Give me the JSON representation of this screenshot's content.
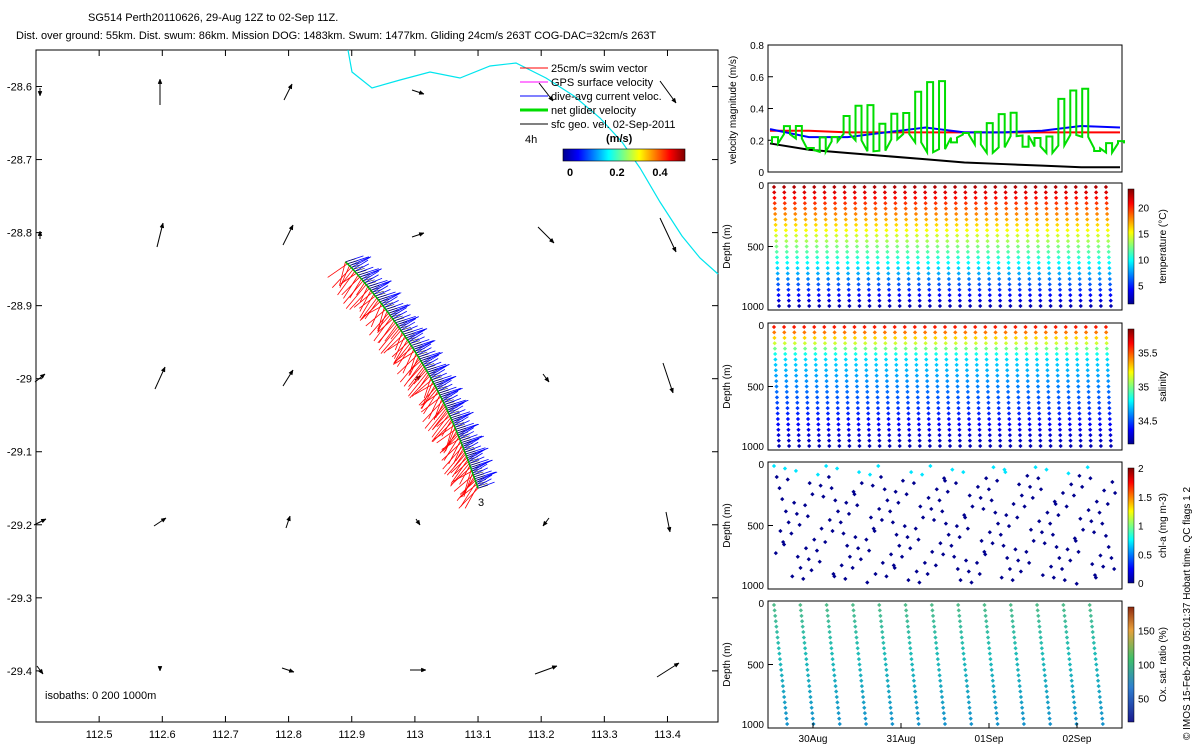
{
  "header": {
    "title": "SG514 Perth20110626, 29-Aug 12Z to 02-Sep 11Z.",
    "stats": "Dist. over ground: 55km. Dist. swum: 86km. Mission DOG: 1483km. Swum: 1477km. Gliding 24cm/s 263T COG-DAC=32cm/s 263T"
  },
  "credit": "© IMOS 15-Feb-2019 05:01:37 Hobart time. QC flags 1  2",
  "chart_data": [
    {
      "id": "map",
      "type": "scatter",
      "xlim": [
        112.4,
        113.48
      ],
      "ylim": [
        -29.47,
        -28.55
      ],
      "xticks": [
        "112.5",
        "112.6",
        "112.7",
        "112.8",
        "112.9",
        "113",
        "113.1",
        "113.2",
        "113.3",
        "113.4"
      ],
      "yticks": [
        "-28.6",
        "-28.7",
        "-28.8",
        "-28.9",
        "-29",
        "-29.1",
        "-29.2",
        "-29.3",
        "-29.4"
      ],
      "legend": {
        "position": "top-right",
        "entries": [
          {
            "label": "25cm/s swim vector",
            "color": "#ff0000"
          },
          {
            "label": "GPS surface velocity",
            "color": "#ff00ff"
          },
          {
            "label": "dive-avg current veloc.",
            "color": "#0000ff"
          },
          {
            "label": "net glider velocity",
            "color": "#00dd00"
          },
          {
            "label": "sfc geo. vel. 02-Sep-2011",
            "color": "#000000"
          }
        ],
        "note": "4h"
      },
      "colorbar": {
        "label": "(m/s)",
        "ticks": [
          "0",
          "0.2",
          "0.4"
        ]
      },
      "isobaths_label": "isobaths: 0   200  1000m",
      "track_start": [
        112.89,
        -28.84
      ],
      "track_end": [
        113.1,
        -29.15
      ],
      "track_end_label": "3"
    },
    {
      "id": "velocity",
      "type": "line",
      "ylabel": "velocity magnitude (m/s)",
      "ylim": [
        0,
        0.8
      ],
      "yticks": [
        "0",
        "0.2",
        "0.4",
        "0.6",
        "0.8"
      ],
      "series": [
        {
          "color": "#ff0000",
          "values": [
            0.26,
            0.26,
            0.25,
            0.25,
            0.25,
            0.25,
            0.25,
            0.25,
            0.25,
            0.25
          ]
        },
        {
          "color": "#0000ff",
          "values": [
            0.27,
            0.22,
            0.22,
            0.25,
            0.28,
            0.25,
            0.25,
            0.26,
            0.29,
            0.28
          ]
        },
        {
          "color": "#000000",
          "values": [
            0.18,
            0.14,
            0.12,
            0.1,
            0.08,
            0.06,
            0.05,
            0.04,
            0.03,
            0.03
          ]
        },
        {
          "color": "#00dd00",
          "values": [
            0.22,
            0.15,
            0.35,
            0.3,
            0.5,
            0.18,
            0.3,
            0.15,
            0.45,
            0.12
          ]
        }
      ]
    },
    {
      "id": "temperature",
      "type": "scatter",
      "ylabel": "Depth (m)",
      "cbar_label": "temperature (°C)",
      "yticks": [
        "0",
        "500",
        "1000"
      ],
      "cbar_ticks": [
        "5",
        "10",
        "15",
        "20"
      ]
    },
    {
      "id": "salinity",
      "type": "scatter",
      "ylabel": "Depth (m)",
      "cbar_label": "salinity",
      "yticks": [
        "0",
        "500",
        "1000"
      ],
      "cbar_ticks": [
        "34.5",
        "35",
        "35.5"
      ]
    },
    {
      "id": "chla",
      "type": "scatter",
      "ylabel": "Depth (m)",
      "cbar_label": "chl-a (mg m-3)",
      "yticks": [
        "0",
        "500",
        "1000"
      ],
      "cbar_ticks": [
        "0",
        "0.5",
        "1",
        "1.5",
        "2"
      ]
    },
    {
      "id": "oxsat",
      "type": "scatter",
      "ylabel": "Depth (m)",
      "cbar_label": "Ox. sat. ratio (%)",
      "yticks": [
        "0",
        "500",
        "1000"
      ],
      "cbar_ticks": [
        "50",
        "100",
        "150"
      ],
      "xticks": [
        "30Aug",
        "31Aug",
        "01Sep",
        "02Sep"
      ]
    }
  ]
}
